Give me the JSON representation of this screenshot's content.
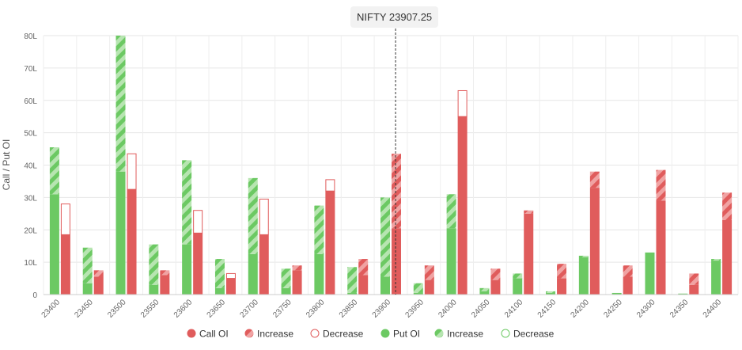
{
  "chart_data": {
    "type": "bar",
    "spot_label": "NIFTY 23907.25",
    "spot_value": 23907.25,
    "ylabel": "Call / Put OI",
    "ylim": [
      0,
      80
    ],
    "yticks": [
      0,
      10,
      20,
      30,
      40,
      50,
      60,
      70,
      80
    ],
    "ytick_labels": [
      "0",
      "10L",
      "20L",
      "30L",
      "40L",
      "50L",
      "60L",
      "70L",
      "80L"
    ],
    "grid": true,
    "legend_position": "bottom",
    "colors": {
      "call": "#e05c5c",
      "call_light": "#f0a3a3",
      "put": "#6cc963",
      "put_light": "#b7e5b1"
    },
    "legend": [
      {
        "label": "Call OI",
        "kind": "solid-circle",
        "side": "call"
      },
      {
        "label": "Increase",
        "kind": "hatch-circle",
        "side": "call"
      },
      {
        "label": "Decrease",
        "kind": "outline-circle",
        "side": "call"
      },
      {
        "label": "Put OI",
        "kind": "solid-circle",
        "side": "put"
      },
      {
        "label": "Increase",
        "kind": "hatch-circle",
        "side": "put"
      },
      {
        "label": "Decrease",
        "kind": "outline-circle",
        "side": "put"
      }
    ],
    "categories": [
      "23400",
      "23450",
      "23500",
      "23550",
      "23600",
      "23650",
      "23700",
      "23750",
      "23800",
      "23850",
      "23900",
      "23950",
      "24000",
      "24050",
      "24100",
      "24150",
      "24200",
      "24250",
      "24300",
      "24350",
      "24400"
    ],
    "put_oi": [
      31,
      3.5,
      38,
      3,
      15.5,
      2,
      12.5,
      2,
      12.5,
      0.5,
      5.5,
      0.5,
      20.5,
      1,
      5,
      0.5,
      11.5,
      0.5,
      13,
      0.3,
      10.5
    ],
    "put_change": [
      14.5,
      11,
      42,
      12.5,
      26,
      9,
      23.5,
      6,
      15,
      8,
      24.5,
      3,
      10.5,
      1,
      1.5,
      0.5,
      0.5,
      0,
      0,
      0,
      0.5
    ],
    "call_oi": [
      18.5,
      5.5,
      32.5,
      6,
      19,
      5,
      18.5,
      7.5,
      32,
      6,
      20.5,
      4.5,
      55,
      4.5,
      25,
      5,
      33,
      5.5,
      29,
      3,
      23
    ],
    "call_change": [
      -9.5,
      2,
      -11,
      1.5,
      -7,
      -1.5,
      -11,
      1.5,
      -3.5,
      5,
      23,
      4.5,
      -8,
      3.5,
      1,
      4.5,
      5,
      3.5,
      9.5,
      3.5,
      8.5
    ]
  }
}
